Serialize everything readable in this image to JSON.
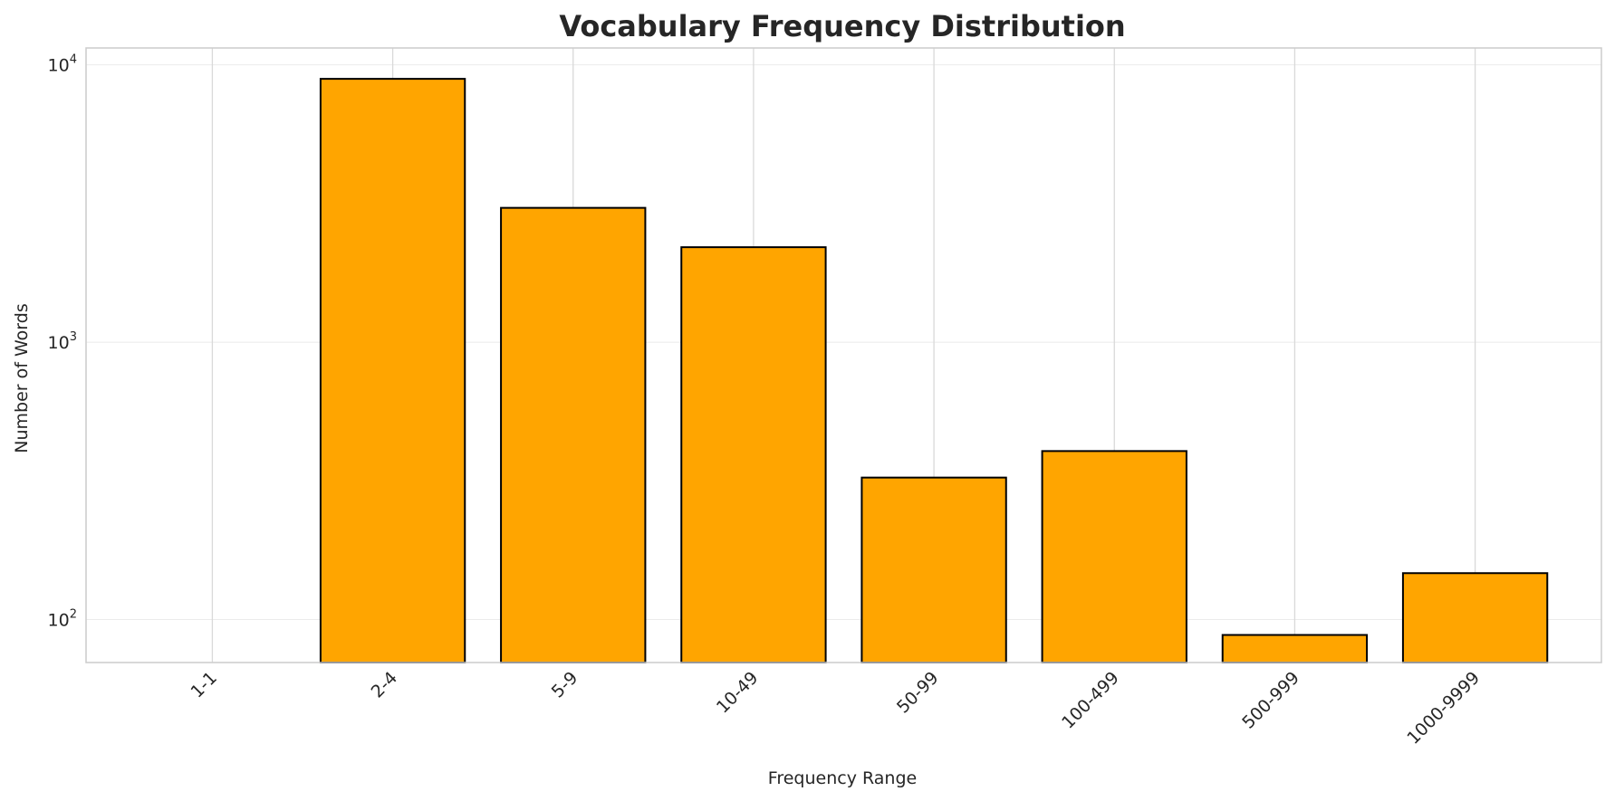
{
  "chart_data": {
    "type": "bar",
    "title": "Vocabulary Frequency Distribution",
    "xlabel": "Frequency Range",
    "ylabel": "Number of Words",
    "categories": [
      "1-1",
      "2-4",
      "5-9",
      "10-49",
      "50-99",
      "100-499",
      "500-999",
      "1000-9999"
    ],
    "values": [
      null,
      8900,
      3050,
      2200,
      325,
      405,
      88,
      147
    ],
    "yscale": "log",
    "ylim": [
      70,
      11500
    ],
    "yticks": [
      {
        "base": "10",
        "exp": "2"
      },
      {
        "base": "10",
        "exp": "3"
      },
      {
        "base": "10",
        "exp": "4"
      }
    ],
    "grid": true,
    "bar_color": "#FFA500",
    "edge_color": "#000000",
    "grid_color": "#d9d9d9",
    "frame_color": "#cccccc"
  }
}
